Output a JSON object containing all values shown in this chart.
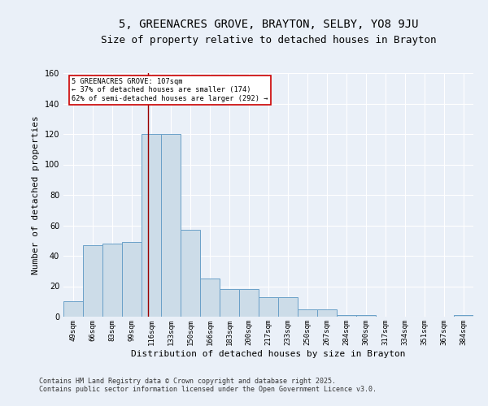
{
  "title": "5, GREENACRES GROVE, BRAYTON, SELBY, YO8 9JU",
  "subtitle": "Size of property relative to detached houses in Brayton",
  "xlabel": "Distribution of detached houses by size in Brayton",
  "ylabel": "Number of detached properties",
  "categories": [
    "49sqm",
    "66sqm",
    "83sqm",
    "99sqm",
    "116sqm",
    "133sqm",
    "150sqm",
    "166sqm",
    "183sqm",
    "200sqm",
    "217sqm",
    "233sqm",
    "250sqm",
    "267sqm",
    "284sqm",
    "300sqm",
    "317sqm",
    "334sqm",
    "351sqm",
    "367sqm",
    "384sqm"
  ],
  "values": [
    10,
    47,
    48,
    49,
    120,
    120,
    57,
    25,
    18,
    18,
    13,
    13,
    5,
    5,
    1,
    1,
    0,
    0,
    0,
    0,
    1
  ],
  "bar_color": "#ccdce8",
  "bar_edge_color": "#6aa0c8",
  "bar_edge_width": 0.7,
  "red_line_x": 3.82,
  "red_line_color": "#990000",
  "ylim": [
    0,
    160
  ],
  "yticks": [
    0,
    20,
    40,
    60,
    80,
    100,
    120,
    140,
    160
  ],
  "annotation_text": "5 GREENACRES GROVE: 107sqm\n← 37% of detached houses are smaller (174)\n62% of semi-detached houses are larger (292) →",
  "annotation_box_color": "#ffffff",
  "annotation_box_edge_color": "#cc0000",
  "footnote1": "Contains HM Land Registry data © Crown copyright and database right 2025.",
  "footnote2": "Contains public sector information licensed under the Open Government Licence v3.0.",
  "bg_color": "#eaf0f8",
  "plot_bg_color": "#eaf0f8",
  "grid_color": "#ffffff",
  "title_fontsize": 10,
  "subtitle_fontsize": 9,
  "tick_fontsize": 6.5,
  "ylabel_fontsize": 8,
  "xlabel_fontsize": 8,
  "footnote_fontsize": 6
}
